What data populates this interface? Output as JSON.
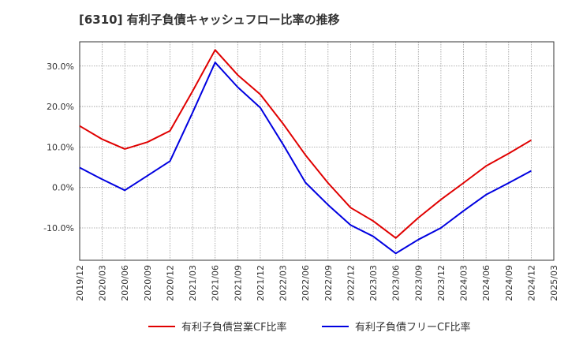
{
  "chart_data": {
    "type": "line",
    "title": "[6310]  有利子負債キャッシュフロー比率の推移",
    "xlabel": "",
    "ylabel": "",
    "ylim": [
      -18,
      36
    ],
    "yticks": [
      30,
      20,
      10,
      0,
      -10
    ],
    "ytick_labels": [
      "30.0%",
      "20.0%",
      "10.0%",
      "0.0%",
      "-10.0%"
    ],
    "xtick_labels": [
      "2019/12",
      "2020/03",
      "2020/06",
      "2020/09",
      "2020/12",
      "2021/03",
      "2021/06",
      "2021/09",
      "2021/12",
      "2022/03",
      "2022/06",
      "2022/09",
      "2022/12",
      "2023/03",
      "2023/06",
      "2023/09",
      "2023/12",
      "2024/03",
      "2024/06",
      "2024/09",
      "2024/12",
      "2025/03"
    ],
    "grid": true,
    "legend_position": "bottom",
    "x": [
      "2019/12",
      "2020/03",
      "2020/06",
      "2020/09",
      "2020/12",
      "2021/03",
      "2021/06",
      "2021/09",
      "2021/12",
      "2022/03",
      "2022/06",
      "2022/09",
      "2022/12",
      "2023/03",
      "2023/06",
      "2023/09",
      "2023/12",
      "2024/03",
      "2024/06",
      "2024/09",
      "2024/12"
    ],
    "series": [
      {
        "name": "有利子負債営業CF比率",
        "color": "#e00000",
        "values": [
          15.2,
          11.9,
          9.5,
          11.2,
          14.0,
          23.8,
          34.0,
          27.8,
          23.0,
          15.8,
          8.0,
          1.1,
          -5.0,
          -8.3,
          -12.5,
          -7.5,
          -3.0,
          1.1,
          5.3,
          8.4,
          11.7
        ]
      },
      {
        "name": "有利子負債フリーCF比率",
        "color": "#0000e0",
        "values": [
          4.9,
          2.0,
          -0.7,
          2.9,
          6.5,
          18.5,
          30.9,
          24.8,
          19.7,
          10.7,
          1.2,
          -4.3,
          -9.3,
          -12.1,
          -16.3,
          -12.9,
          -10.0,
          -5.8,
          -1.8,
          1.1,
          4.1
        ]
      }
    ]
  }
}
